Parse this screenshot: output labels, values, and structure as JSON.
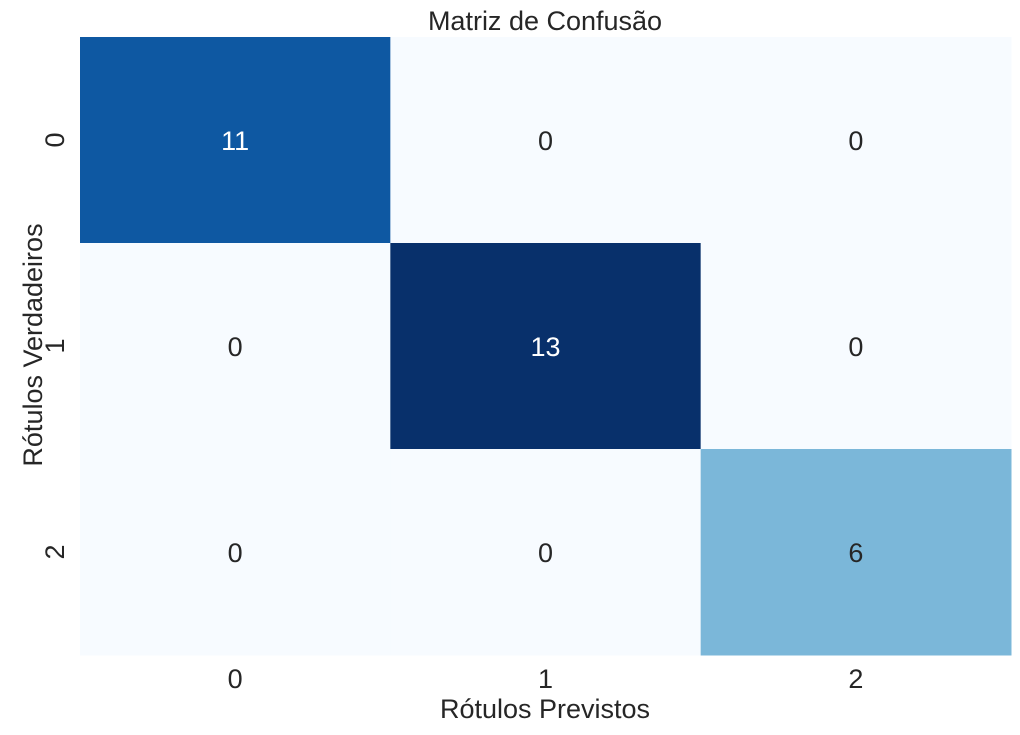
{
  "chart_data": {
    "type": "heatmap",
    "title": "Matriz de Confusão",
    "xlabel": "Rótulos Previstos",
    "ylabel": "Rótulos Verdadeiros",
    "x_categories": [
      "0",
      "1",
      "2"
    ],
    "y_categories": [
      "0",
      "1",
      "2"
    ],
    "values": [
      [
        11,
        0,
        0
      ],
      [
        0,
        13,
        0
      ],
      [
        0,
        0,
        6
      ]
    ],
    "colormap": "Blues",
    "color_range": [
      0,
      13
    ],
    "colors": {
      "min": "#f7fbff",
      "max": "#08306b",
      "text_light": "#ffffff",
      "text_dark": "#262626"
    },
    "colorbar": false,
    "grid": false
  }
}
